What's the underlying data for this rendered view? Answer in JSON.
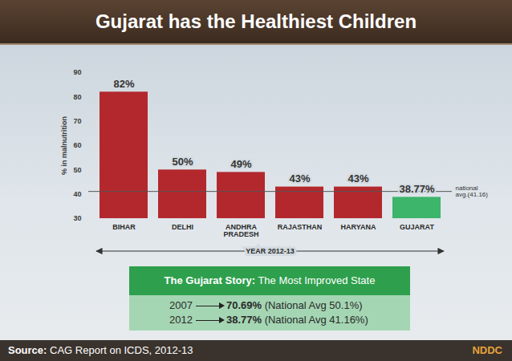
{
  "chart_data": {
    "type": "bar",
    "title": "Gujarat has the Healthiest Children",
    "categories": [
      "BIHAR",
      "DELHI",
      "ANDHRA PRADESH",
      "RAJASTHAN",
      "HARYANA",
      "GUJARAT"
    ],
    "values": [
      82,
      50,
      49,
      43,
      43,
      38.77
    ],
    "value_labels": [
      "82%",
      "50%",
      "49%",
      "43%",
      "43%",
      "38.77%"
    ],
    "colors": [
      "#b3282d",
      "#b3282d",
      "#b3282d",
      "#b3282d",
      "#b3282d",
      "#3db56a"
    ],
    "data_labels": true,
    "ylim": [
      30,
      90
    ],
    "yticks": [
      30,
      40,
      50,
      60,
      70,
      80,
      90
    ],
    "y_label": "% in malnutrition",
    "x_label": "YEAR 2012-13",
    "reference_line": {
      "value": 41.16,
      "label": "national avg.(41.16)"
    },
    "grid": false
  },
  "panel": {
    "title": "The Gujarat Story:",
    "subtitle": "The Most Improved State",
    "rows": [
      {
        "year": "2007",
        "value": "70.69%",
        "note": "(National Avg 50.1%)"
      },
      {
        "year": "2012",
        "value": "38.77%",
        "note": "(National Avg 41.16%)"
      }
    ]
  },
  "footer": {
    "source_label": "Source:",
    "source": "CAG Report on ICDS, 2012-13",
    "logo": "NDDC"
  }
}
